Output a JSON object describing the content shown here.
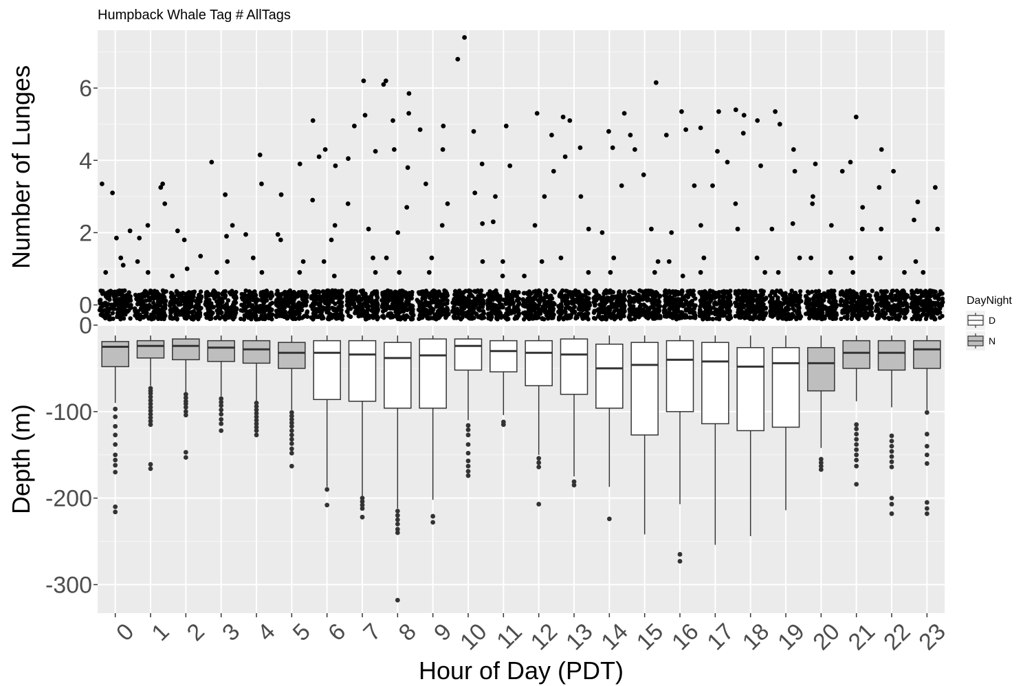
{
  "chart_data": [
    {
      "type": "scatter",
      "title": "Humpback Whale Tag # AllTags",
      "ylabel": "Number of Lunges",
      "ylim": [
        -0.35,
        7.6
      ],
      "yticks": [
        0,
        2,
        4,
        6
      ],
      "ytick_labels": [
        "0",
        "2",
        "4",
        "6"
      ],
      "grid": true,
      "note_jitter": true,
      "zero_cluster": {
        "y_range": [
          -0.4,
          0.4
        ]
      },
      "points": [
        [
          0,
          3.35
        ],
        [
          0,
          3.1
        ],
        [
          0,
          2.05
        ],
        [
          0,
          1.85
        ],
        [
          0,
          1.3
        ],
        [
          0,
          1.1
        ],
        [
          0,
          0.9
        ],
        [
          1,
          3.35
        ],
        [
          1,
          3.25
        ],
        [
          1,
          2.8
        ],
        [
          1,
          2.2
        ],
        [
          1,
          1.85
        ],
        [
          1,
          1.2
        ],
        [
          1,
          0.9
        ],
        [
          2,
          2.05
        ],
        [
          2,
          1.8
        ],
        [
          2,
          1.35
        ],
        [
          2,
          1.0
        ],
        [
          2,
          0.8
        ],
        [
          3,
          3.95
        ],
        [
          3,
          3.05
        ],
        [
          3,
          2.2
        ],
        [
          3,
          1.9
        ],
        [
          3,
          1.2
        ],
        [
          3,
          0.9
        ],
        [
          4,
          4.15
        ],
        [
          4,
          3.35
        ],
        [
          4,
          1.95
        ],
        [
          4,
          1.3
        ],
        [
          4,
          0.9
        ],
        [
          5,
          3.9
        ],
        [
          5,
          3.05
        ],
        [
          5,
          1.95
        ],
        [
          5,
          1.8
        ],
        [
          5,
          1.2
        ],
        [
          5,
          0.9
        ],
        [
          6,
          5.1
        ],
        [
          6,
          4.3
        ],
        [
          6,
          4.1
        ],
        [
          6,
          3.85
        ],
        [
          6,
          2.9
        ],
        [
          6,
          2.2
        ],
        [
          6,
          1.8
        ],
        [
          6,
          1.2
        ],
        [
          6,
          0.8
        ],
        [
          7,
          6.2
        ],
        [
          7,
          5.25
        ],
        [
          7,
          4.95
        ],
        [
          7,
          4.25
        ],
        [
          7,
          4.05
        ],
        [
          7,
          2.8
        ],
        [
          7,
          2.1
        ],
        [
          7,
          1.3
        ],
        [
          7,
          0.9
        ],
        [
          8,
          6.2
        ],
        [
          8,
          6.1
        ],
        [
          8,
          5.85
        ],
        [
          8,
          5.3
        ],
        [
          8,
          5.1
        ],
        [
          8,
          4.3
        ],
        [
          8,
          3.8
        ],
        [
          8,
          2.7
        ],
        [
          8,
          2.0
        ],
        [
          8,
          1.3
        ],
        [
          8,
          0.9
        ],
        [
          9,
          4.95
        ],
        [
          9,
          4.85
        ],
        [
          9,
          4.3
        ],
        [
          9,
          3.35
        ],
        [
          9,
          2.8
        ],
        [
          9,
          2.2
        ],
        [
          9,
          1.3
        ],
        [
          9,
          0.9
        ],
        [
          10,
          7.4
        ],
        [
          10,
          6.8
        ],
        [
          10,
          4.8
        ],
        [
          10,
          3.9
        ],
        [
          10,
          3.1
        ],
        [
          10,
          2.25
        ],
        [
          10,
          1.2
        ],
        [
          11,
          4.95
        ],
        [
          11,
          3.85
        ],
        [
          11,
          3.0
        ],
        [
          11,
          2.3
        ],
        [
          11,
          1.2
        ],
        [
          11,
          0.8
        ],
        [
          12,
          5.3
        ],
        [
          12,
          4.7
        ],
        [
          12,
          3.7
        ],
        [
          12,
          3.0
        ],
        [
          12,
          2.2
        ],
        [
          12,
          1.2
        ],
        [
          12,
          0.8
        ],
        [
          13,
          5.2
        ],
        [
          13,
          5.1
        ],
        [
          13,
          4.35
        ],
        [
          13,
          4.1
        ],
        [
          13,
          3.0
        ],
        [
          13,
          2.1
        ],
        [
          13,
          1.3
        ],
        [
          13,
          0.9
        ],
        [
          14,
          5.3
        ],
        [
          14,
          4.8
        ],
        [
          14,
          4.35
        ],
        [
          14,
          3.3
        ],
        [
          14,
          2.0
        ],
        [
          14,
          1.3
        ],
        [
          14,
          0.9
        ],
        [
          15,
          6.15
        ],
        [
          15,
          4.7
        ],
        [
          15,
          4.3
        ],
        [
          15,
          3.6
        ],
        [
          15,
          2.1
        ],
        [
          15,
          1.2
        ],
        [
          15,
          0.9
        ],
        [
          16,
          5.35
        ],
        [
          16,
          4.85
        ],
        [
          16,
          4.7
        ],
        [
          16,
          3.3
        ],
        [
          16,
          2.0
        ],
        [
          16,
          1.2
        ],
        [
          16,
          0.8
        ],
        [
          17,
          5.35
        ],
        [
          17,
          4.9
        ],
        [
          17,
          4.25
        ],
        [
          17,
          3.95
        ],
        [
          17,
          3.3
        ],
        [
          17,
          2.2
        ],
        [
          17,
          1.3
        ],
        [
          17,
          0.9
        ],
        [
          18,
          5.4
        ],
        [
          18,
          5.25
        ],
        [
          18,
          5.1
        ],
        [
          18,
          4.75
        ],
        [
          18,
          3.85
        ],
        [
          18,
          2.8
        ],
        [
          18,
          2.1
        ],
        [
          18,
          1.3
        ],
        [
          18,
          0.9
        ],
        [
          19,
          5.35
        ],
        [
          19,
          5.0
        ],
        [
          19,
          4.3
        ],
        [
          19,
          3.7
        ],
        [
          19,
          2.25
        ],
        [
          19,
          2.1
        ],
        [
          19,
          1.3
        ],
        [
          19,
          0.9
        ],
        [
          20,
          3.9
        ],
        [
          20,
          3.0
        ],
        [
          20,
          2.8
        ],
        [
          20,
          2.2
        ],
        [
          20,
          1.3
        ],
        [
          20,
          0.9
        ],
        [
          21,
          5.2
        ],
        [
          21,
          3.95
        ],
        [
          21,
          3.7
        ],
        [
          21,
          2.7
        ],
        [
          21,
          2.1
        ],
        [
          21,
          1.3
        ],
        [
          21,
          0.9
        ],
        [
          22,
          4.3
        ],
        [
          22,
          3.7
        ],
        [
          22,
          3.25
        ],
        [
          22,
          2.1
        ],
        [
          22,
          1.3
        ],
        [
          22,
          0.9
        ],
        [
          23,
          3.25
        ],
        [
          23,
          2.85
        ],
        [
          23,
          2.35
        ],
        [
          23,
          2.1
        ],
        [
          23,
          1.2
        ],
        [
          23,
          0.9
        ]
      ]
    },
    {
      "type": "box",
      "ylabel": "Depth (m)",
      "xlabel": "Hour of Day (PDT)",
      "ylim": [
        -333,
        0
      ],
      "yticks": [
        0,
        -100,
        -200,
        -300
      ],
      "ytick_labels": [
        "0",
        "-100",
        "-200",
        "-300"
      ],
      "categories": [
        "0",
        "1",
        "2",
        "3",
        "4",
        "5",
        "6",
        "7",
        "8",
        "9",
        "10",
        "11",
        "12",
        "13",
        "14",
        "15",
        "16",
        "17",
        "18",
        "19",
        "20",
        "21",
        "22",
        "23"
      ],
      "grid": true,
      "legend": {
        "title": "DayNight",
        "placement": "right",
        "entries": [
          {
            "label": "D",
            "color": "#ffffff"
          },
          {
            "label": "N",
            "color": "#bebebe"
          }
        ]
      },
      "boxes": [
        {
          "x": "0",
          "group": "N",
          "low": -90,
          "q1": -48,
          "median": -25,
          "q3": -19,
          "high": -12,
          "outliers": [
            -97,
            -106,
            -117,
            -127,
            -138,
            -150,
            -156,
            -162,
            -170,
            -210,
            -216
          ]
        },
        {
          "x": "1",
          "group": "N",
          "low": -70,
          "q1": -38,
          "median": -24,
          "q3": -18,
          "high": -12,
          "outliers": [
            -73,
            -76,
            -79,
            -83,
            -87,
            -91,
            -95,
            -99,
            -103,
            -107,
            -111,
            -115,
            -161,
            -166
          ]
        },
        {
          "x": "2",
          "group": "N",
          "low": -78,
          "q1": -40,
          "median": -24,
          "q3": -16,
          "high": -12,
          "outliers": [
            -80,
            -84,
            -88,
            -91,
            -95,
            -100,
            -104,
            -147,
            -153
          ]
        },
        {
          "x": "3",
          "group": "N",
          "low": -82,
          "q1": -42,
          "median": -26,
          "q3": -18,
          "high": -12,
          "outliers": [
            -85,
            -89,
            -93,
            -98,
            -103,
            -109,
            -114,
            -122
          ]
        },
        {
          "x": "4",
          "group": "N",
          "low": -88,
          "q1": -44,
          "median": -28,
          "q3": -18,
          "high": -12,
          "outliers": [
            -90,
            -94,
            -98,
            -102,
            -106,
            -110,
            -114,
            -118,
            -122,
            -127
          ]
        },
        {
          "x": "5",
          "group": "N",
          "low": -98,
          "q1": -50,
          "median": -32,
          "q3": -20,
          "high": -12,
          "outliers": [
            -101,
            -105,
            -109,
            -113,
            -117,
            -122,
            -127,
            -132,
            -137,
            -143,
            -148,
            -163
          ]
        },
        {
          "x": "6",
          "group": "D",
          "low": -187,
          "q1": -86,
          "median": -32,
          "q3": -18,
          "high": -12,
          "outliers": [
            -190,
            -208
          ]
        },
        {
          "x": "7",
          "group": "D",
          "low": -198,
          "q1": -88,
          "median": -34,
          "q3": -18,
          "high": -12,
          "outliers": [
            -200,
            -204,
            -208,
            -212,
            -222
          ]
        },
        {
          "x": "8",
          "group": "D",
          "low": -212,
          "q1": -96,
          "median": -38,
          "q3": -20,
          "high": -12,
          "outliers": [
            -215,
            -220,
            -225,
            -230,
            -236,
            -240,
            -318
          ]
        },
        {
          "x": "9",
          "group": "D",
          "low": -202,
          "q1": -96,
          "median": -35,
          "q3": -16,
          "high": -12,
          "outliers": [
            -221,
            -228
          ]
        },
        {
          "x": "10",
          "group": "D",
          "low": -110,
          "q1": -52,
          "median": -24,
          "q3": -16,
          "high": -12,
          "outliers": [
            -116,
            -121,
            -127,
            -138,
            -148,
            -157,
            -163,
            -169,
            -174
          ]
        },
        {
          "x": "11",
          "group": "D",
          "low": -104,
          "q1": -54,
          "median": -30,
          "q3": -18,
          "high": -12,
          "outliers": [
            -112,
            -115
          ]
        },
        {
          "x": "12",
          "group": "D",
          "low": -150,
          "q1": -70,
          "median": -32,
          "q3": -18,
          "high": -12,
          "outliers": [
            -154,
            -159,
            -164,
            -207
          ]
        },
        {
          "x": "13",
          "group": "D",
          "low": -175,
          "q1": -80,
          "median": -34,
          "q3": -16,
          "high": -12,
          "outliers": [
            -181,
            -185
          ]
        },
        {
          "x": "14",
          "group": "D",
          "low": -187,
          "q1": -96,
          "median": -50,
          "q3": -22,
          "high": -12,
          "outliers": [
            -224
          ]
        },
        {
          "x": "15",
          "group": "D",
          "low": -242,
          "q1": -127,
          "median": -46,
          "q3": -20,
          "high": -12,
          "outliers": []
        },
        {
          "x": "16",
          "group": "D",
          "low": -207,
          "q1": -100,
          "median": -40,
          "q3": -18,
          "high": -12,
          "outliers": [
            -265,
            -273
          ]
        },
        {
          "x": "17",
          "group": "D",
          "low": -254,
          "q1": -114,
          "median": -42,
          "q3": -20,
          "high": -12,
          "outliers": []
        },
        {
          "x": "18",
          "group": "D",
          "low": -244,
          "q1": -122,
          "median": -48,
          "q3": -26,
          "high": -12,
          "outliers": []
        },
        {
          "x": "19",
          "group": "D",
          "low": -214,
          "q1": -118,
          "median": -44,
          "q3": -26,
          "high": -12,
          "outliers": []
        },
        {
          "x": "20",
          "group": "N",
          "low": -142,
          "q1": -76,
          "median": -44,
          "q3": -26,
          "high": -12,
          "outliers": [
            -155,
            -159,
            -163,
            -167
          ]
        },
        {
          "x": "21",
          "group": "N",
          "low": -88,
          "q1": -50,
          "median": -32,
          "q3": -18,
          "high": -12,
          "outliers": [
            -115,
            -120,
            -126,
            -132,
            -138,
            -144,
            -150,
            -156,
            -163,
            -184
          ]
        },
        {
          "x": "22",
          "group": "N",
          "low": -95,
          "q1": -52,
          "median": -32,
          "q3": -18,
          "high": -12,
          "outliers": [
            -128,
            -134,
            -140,
            -146,
            -152,
            -158,
            -164,
            -200,
            -207,
            -218
          ]
        },
        {
          "x": "23",
          "group": "N",
          "low": -98,
          "q1": -50,
          "median": -28,
          "q3": -18,
          "high": -12,
          "outliers": [
            -101,
            -126,
            -140,
            -150,
            -160,
            -205,
            -212,
            -218
          ]
        }
      ]
    }
  ]
}
